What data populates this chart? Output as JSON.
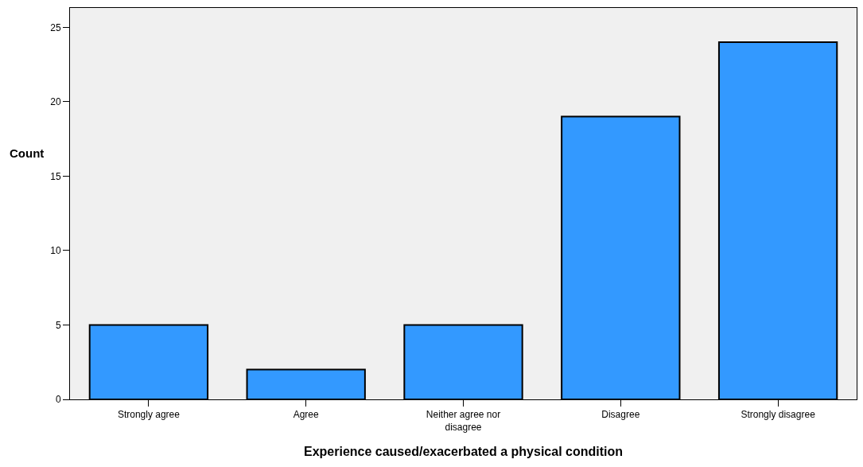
{
  "chart_data": {
    "type": "bar",
    "xlabel": "Experience caused/exacerbated a physical condition",
    "ylabel": "Count",
    "categories": [
      "Strongly agree",
      "Agree",
      "Neither agree nor disagree",
      "Disagree",
      "Strongly disagree"
    ],
    "values": [
      5,
      2,
      5,
      19,
      24
    ],
    "color": "#3399ff",
    "ylim": [
      0,
      26.3
    ],
    "yticks": [
      0,
      5,
      10,
      15,
      20,
      25
    ],
    "grid": false
  }
}
